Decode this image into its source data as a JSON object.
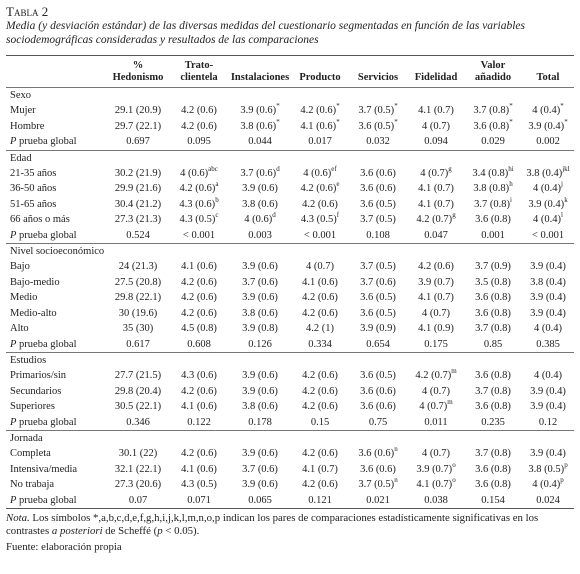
{
  "header": {
    "label": "Tabla 2",
    "caption": "Media (y desviación estándar) de las diversas medidas del cuestionario segmentadas en función de las variables sociodemográficas consideradas y resultados de las comparaciones"
  },
  "table": {
    "columns": [
      "% Hedonismo",
      "Trato-clientela",
      "Instalaciones",
      "Producto",
      "Servicios",
      "Fidelidad",
      "Valor añadido",
      "Total"
    ],
    "sections": [
      {
        "title": "Sexo",
        "rows": [
          {
            "label": "Mujer",
            "cells": [
              "29.1 (20.9)",
              "4.2 (0.6)",
              [
                "3.9 (0.6)",
                "*"
              ],
              [
                "4.2 (0.6)",
                "*"
              ],
              [
                "3.7 (0.5)",
                "*"
              ],
              "4.1 (0.7)",
              [
                "3.7 (0.8)",
                "*"
              ],
              [
                "4 (0.4)",
                "*"
              ]
            ]
          },
          {
            "label": "Hombre",
            "cells": [
              "29.7 (22.1)",
              "4.2 (0.6)",
              [
                "3.8 (0.6)",
                "*"
              ],
              [
                "4.1 (0.6)",
                "*"
              ],
              [
                "3.6 (0.5)",
                "*"
              ],
              "4 (0.7)",
              [
                "3.6 (0.8)",
                "*"
              ],
              [
                "3.9 (0.4)",
                "*"
              ]
            ]
          }
        ],
        "global": {
          "label_em": "P",
          "label": "prueba global",
          "cells": [
            "0.697",
            "0.095",
            "0.044",
            "0.017",
            "0.032",
            "0.094",
            "0.029",
            "0.002"
          ]
        }
      },
      {
        "title": "Edad",
        "rows": [
          {
            "label": "21-35 años",
            "cells": [
              "30.2 (21.9)",
              [
                "4 (0.6)",
                "abc"
              ],
              [
                "3.7 (0.6)",
                "d"
              ],
              [
                "4 (0.6)",
                "ef"
              ],
              "3.6 (0.6)",
              [
                "4 (0.7)",
                "g"
              ],
              [
                "3.4 (0.8)",
                "hi"
              ],
              [
                "3.8 (0.4)",
                "jkl"
              ]
            ]
          },
          {
            "label": "36-50 años",
            "cells": [
              "29.9 (21.6)",
              [
                "4.2 (0.6)",
                "a"
              ],
              "3.9 (0.6)",
              [
                "4.2 (0.6)",
                "e"
              ],
              "3.6 (0.6)",
              "4.1 (0.7)",
              [
                "3.8 (0.8)",
                "h"
              ],
              [
                "4 (0.4)",
                "j"
              ]
            ]
          },
          {
            "label": "51-65 años",
            "cells": [
              "30.4 (21.2)",
              [
                "4.3 (0.6)",
                "b"
              ],
              "3.8 (0.6)",
              "4.2 (0.6)",
              "3.6 (0.5)",
              "4.1 (0.7)",
              [
                "3.7 (0.8)",
                "i"
              ],
              [
                "3.9 (0.4)",
                "k"
              ]
            ]
          },
          {
            "label": "66 años o más",
            "cells": [
              "27.3 (21.3)",
              [
                "4.3 (0.5)",
                "c"
              ],
              [
                "4 (0.6)",
                "d"
              ],
              [
                "4.3 (0.5)",
                "f"
              ],
              "3.7 (0.5)",
              [
                "4.2 (0.7)",
                "g"
              ],
              "3.6 (0.8)",
              [
                "4 (0.4)",
                "l"
              ]
            ]
          }
        ],
        "global": {
          "label_em": "P",
          "label": "prueba global",
          "cells": [
            "0.524",
            "< 0.001",
            "0.003",
            "< 0.001",
            "0.108",
            "0.047",
            "0.001",
            "< 0.001"
          ]
        }
      },
      {
        "title": "Nivel socioeconómico",
        "rows": [
          {
            "label": "Bajo",
            "cells": [
              "24 (21.3)",
              "4.1 (0.6)",
              "3.9 (0.6)",
              "4 (0.7)",
              "3.7 (0.5)",
              "4.2 (0.6)",
              "3.7 (0.9)",
              "3.9 (0.4)"
            ]
          },
          {
            "label": "Bajo-medio",
            "cells": [
              "27.5 (20.8)",
              "4.2 (0.6)",
              "3.7 (0.6)",
              "4.1 (0.6)",
              "3.7 (0.6)",
              "3.9 (0.7)",
              "3.5 (0.8)",
              "3.8 (0.4)"
            ]
          },
          {
            "label": "Medio",
            "cells": [
              "29.8 (22.1)",
              "4.2 (0.6)",
              "3.9 (0.6)",
              "4.2 (0.6)",
              "3.6 (0.5)",
              "4.1 (0.7)",
              "3.6 (0.8)",
              "3.9 (0.4)"
            ]
          },
          {
            "label": "Medio-alto",
            "cells": [
              "30 (19.6)",
              "4.2 (0.6)",
              "3.8 (0.6)",
              "4.2 (0.6)",
              "3.6 (0.5)",
              "4 (0.7)",
              "3.6 (0.8)",
              "3.9 (0.4)"
            ]
          },
          {
            "label": "Alto",
            "cells": [
              "35 (30)",
              "4.5 (0.8)",
              "3.9 (0.8)",
              "4.2 (1)",
              "3.9 (0.9)",
              "4.1 (0.9)",
              "3.7 (0.8)",
              "4 (0.4)"
            ]
          }
        ],
        "global": {
          "label_em": "P",
          "label": "prueba global",
          "cells": [
            "0.617",
            "0.608",
            "0.126",
            "0.334",
            "0.654",
            "0.175",
            "0.85",
            "0.385"
          ]
        }
      },
      {
        "title": "Estudios",
        "rows": [
          {
            "label": "Primarios/sin",
            "cells": [
              "27.7 (21.5)",
              "4.3 (0.6)",
              "3.9 (0.6)",
              "4.2 (0.6)",
              "3.6 (0.5)",
              [
                "4.2 (0.7)",
                "m"
              ],
              "3.6 (0.8)",
              "4 (0.4)"
            ]
          },
          {
            "label": "Secundarios",
            "cells": [
              "29.8 (20.4)",
              "4.2 (0.6)",
              "3.9 (0.6)",
              "4.2 (0.6)",
              "3.6 (0.6)",
              "4 (0.7)",
              "3.7 (0.8)",
              "3.9 (0.4)"
            ]
          },
          {
            "label": "Superiores",
            "cells": [
              "30.5 (22.1)",
              "4.1 (0.6)",
              "3.8 (0.6)",
              "4.2 (0.6)",
              "3.6 (0.6)",
              [
                "4 (0.7)",
                "m"
              ],
              "3.6 (0.8)",
              "3.9 (0.4)"
            ]
          }
        ],
        "global": {
          "label_em": "P",
          "label": "prueba global",
          "cells": [
            "0.346",
            "0.122",
            "0.178",
            "0.15",
            "0.75",
            "0.011",
            "0.235",
            "0.12"
          ]
        }
      },
      {
        "title": "Jornada",
        "rows": [
          {
            "label": "Completa",
            "cells": [
              "30.1 (22)",
              "4.2 (0.6)",
              "3.9 (0.6)",
              "4.2 (0.6)",
              [
                "3.6 (0.6)",
                "n"
              ],
              "4 (0.7)",
              "3.7 (0.8)",
              "3.9 (0.4)"
            ]
          },
          {
            "label": "Intensiva/media",
            "cells": [
              "32.1 (22.1)",
              "4.1 (0.6)",
              "3.7 (0.6)",
              "4.1 (0.7)",
              "3.6 (0.6)",
              [
                "3.9 (0.7)",
                "o"
              ],
              "3.6 (0.8)",
              [
                "3.8 (0.5)",
                "p"
              ]
            ]
          },
          {
            "label": "No trabaja",
            "cells": [
              "27.3 (20.6)",
              "4.3 (0.5)",
              "3.9 (0.6)",
              "4.2 (0.6)",
              [
                "3.7 (0.5)",
                "n"
              ],
              [
                "4.1 (0.7)",
                "o"
              ],
              "3.6 (0.8)",
              [
                "4 (0.4)",
                "p"
              ]
            ]
          }
        ],
        "global": {
          "label_em": "P",
          "label": "prueba global",
          "cells": [
            "0.07",
            "0.071",
            "0.065",
            "0.121",
            "0.021",
            "0.038",
            "0.154",
            "0.024"
          ]
        }
      }
    ]
  },
  "note": {
    "parts": [
      {
        "text": "Nota.",
        "em": true
      },
      {
        "text": " Los símbolos *,a,b,c,d,e,f,g,h,i,j,k,l,m,n,o,p indican los pares de comparaciones estadísticamente significativas en los contrastes "
      },
      {
        "text": "a posteriori",
        "em": true
      },
      {
        "text": " de Scheffé ("
      },
      {
        "text": "p",
        "em": true
      },
      {
        "text": " < 0.05)."
      }
    ]
  },
  "source": "Fuente: elaboración propia"
}
